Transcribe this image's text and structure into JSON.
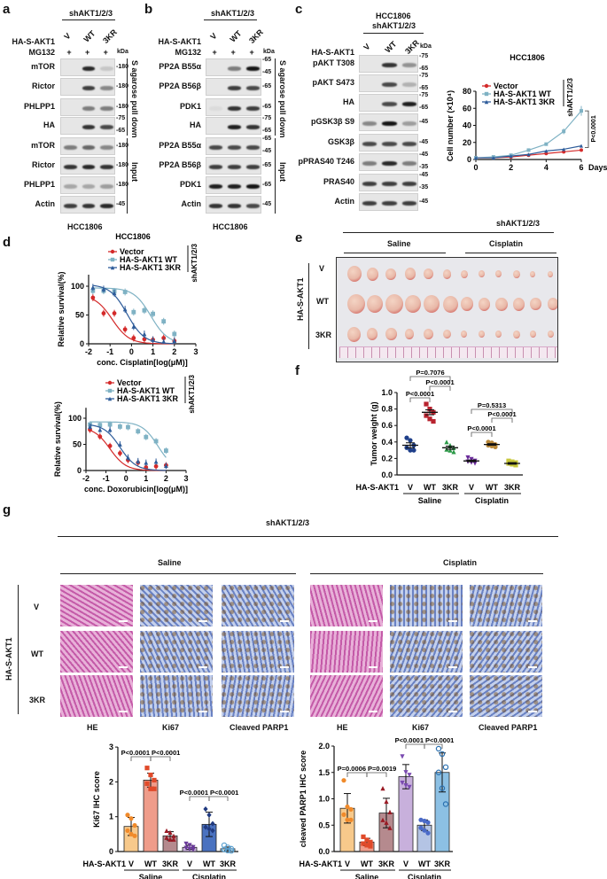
{
  "panel_labels": [
    "a",
    "b",
    "c",
    "d",
    "e",
    "f",
    "g"
  ],
  "a": {
    "header": "shAKT1/2/3",
    "row_label": "HA-S-AKT1",
    "lanes": [
      "V",
      "WT",
      "3KR"
    ],
    "mg132_label": "MG132",
    "mg132": [
      "+",
      "+",
      "+"
    ],
    "kda": "kDa",
    "rows": [
      {
        "name": "mTOR",
        "kda": [
          "180"
        ],
        "bands": [
          0,
          0.9,
          0.15
        ]
      },
      {
        "name": "Rictor",
        "kda": [
          "180"
        ],
        "bands": [
          0,
          0.8,
          0.45
        ]
      },
      {
        "name": "PHLPP1",
        "kda": [
          "180"
        ],
        "bands": [
          0,
          0.5,
          0.5
        ]
      },
      {
        "name": "HA",
        "kda": [
          "75",
          "65"
        ],
        "bands": [
          0,
          0.85,
          0.75
        ]
      },
      {
        "name": "mTOR",
        "kda": [
          "180"
        ],
        "bands": [
          0.5,
          0.6,
          0.45
        ]
      },
      {
        "name": "Rictor",
        "kda": [
          "180"
        ],
        "bands": [
          0.85,
          0.9,
          0.85
        ]
      },
      {
        "name": "PHLPP1",
        "kda": [
          "180"
        ],
        "bands": [
          0.3,
          0.3,
          0.35
        ]
      },
      {
        "name": "Actin",
        "kda": [
          "45"
        ],
        "bands": [
          0.8,
          0.85,
          0.9
        ]
      }
    ],
    "bracket_top": "S agarose pull down",
    "bracket_bottom": "Input",
    "cell_line": "HCC1806"
  },
  "b": {
    "header": "shAKT1/2/3",
    "row_label": "HA-S-AKT1",
    "lanes": [
      "V",
      "WT",
      "3KR"
    ],
    "mg132_label": "MG132",
    "mg132": [
      "+",
      "+",
      "+"
    ],
    "kda": "kDa",
    "rows": [
      {
        "name": "PP2A B55α",
        "kda": [
          "65",
          "45"
        ],
        "bands": [
          0,
          0.5,
          1
        ]
      },
      {
        "name": "PP2A B56β",
        "kda": [
          "65"
        ],
        "bands": [
          0,
          0.8,
          0.75
        ]
      },
      {
        "name": "PDK1",
        "kda": [
          "65"
        ],
        "bands": [
          0.05,
          0.85,
          0.8
        ]
      },
      {
        "name": "HA",
        "kda": [
          "75",
          "65"
        ],
        "bands": [
          0,
          0.95,
          0.85
        ]
      },
      {
        "name": "PP2A B55α",
        "kda": [
          "65",
          "45"
        ],
        "bands": [
          0.75,
          0.75,
          0.75
        ]
      },
      {
        "name": "PP2A B56β",
        "kda": [
          "65"
        ],
        "bands": [
          0.8,
          0.8,
          0.8
        ]
      },
      {
        "name": "PDK1",
        "kda": [
          "65"
        ],
        "bands": [
          0.95,
          0.95,
          1
        ]
      },
      {
        "name": "Actin",
        "kda": [
          "45"
        ],
        "bands": [
          0.85,
          0.85,
          0.75
        ]
      }
    ],
    "bracket_top": "S agarose pull down",
    "bracket_bottom": "Input",
    "cell_line": "HCC1806"
  },
  "c": {
    "header_line1": "HCC1806",
    "header_line2": "shAKT1/2/3",
    "row_label": "HA-S-AKT1",
    "lanes": [
      "V",
      "WT",
      "3KR"
    ],
    "kda": "kDa",
    "rows": [
      {
        "name": "pAKT T308",
        "kda": [
          "75",
          "65"
        ],
        "bands": [
          0,
          0.85,
          0.4
        ]
      },
      {
        "name": "pAKT S473",
        "kda": [
          "75",
          "65"
        ],
        "bands": [
          0,
          0.75,
          0.25
        ]
      },
      {
        "name": "HA",
        "kda": [
          "75",
          "65"
        ],
        "bands": [
          0,
          0.75,
          0.95
        ]
      },
      {
        "name": "pGSK3β S9",
        "kda": [
          "45"
        ],
        "bands": [
          0.45,
          1,
          0.35
        ]
      },
      {
        "name": "GSK3β",
        "kda": [
          "45"
        ],
        "bands": [
          0.75,
          0.75,
          0.75
        ]
      },
      {
        "name": "pPRAS40 T246",
        "kda": [
          "45",
          "35"
        ],
        "bands": [
          0.5,
          0.9,
          0.5
        ]
      },
      {
        "name": "PRAS40",
        "kda": [
          "45",
          "35"
        ],
        "bands": [
          0.8,
          0.8,
          0.8
        ]
      },
      {
        "name": "Actin",
        "kda": [
          "45"
        ],
        "bands": [
          0.8,
          0.8,
          0.8
        ]
      }
    ]
  },
  "chart_data": [
    {
      "id": "growth",
      "type": "line",
      "title": "HCC1806",
      "xlabel": "Days",
      "ylabel": "Cell number (×10⁴)",
      "xlim": [
        0,
        6
      ],
      "ylim": [
        0,
        80
      ],
      "xticks": [
        0,
        2,
        4,
        6
      ],
      "yticks": [
        0,
        20,
        40,
        60,
        80
      ],
      "legend_side": "shAKT1/2/3",
      "annotation": "P<0.0001",
      "x": [
        0,
        1,
        2,
        3,
        4,
        5,
        6
      ],
      "series": [
        {
          "name": "Vector",
          "color": "#d42a2a",
          "marker": "circle",
          "values": [
            2,
            2,
            3,
            5,
            7,
            9,
            11
          ]
        },
        {
          "name": "HA-S-AKT1 WT",
          "color": "#7fb2c4",
          "marker": "square",
          "values": [
            2,
            3,
            5,
            11,
            18,
            33,
            57
          ]
        },
        {
          "name": "HA-S-AKT1 3KR",
          "color": "#2e5c9a",
          "marker": "triangle",
          "values": [
            2,
            2,
            4,
            6,
            10,
            12,
            16
          ]
        }
      ]
    },
    {
      "id": "cisplatin",
      "type": "scatter",
      "title": "HCC1806",
      "xlabel": "conc. Cisplatin[log(μM)]",
      "ylabel": "Relative survival(%)",
      "xlim": [
        -2,
        3
      ],
      "ylim": [
        0,
        120
      ],
      "xticks": [
        -2,
        -1,
        0,
        1,
        2,
        3
      ],
      "yticks": [
        0,
        50,
        100
      ],
      "legend_side": "shAKT1/2/3",
      "x": [
        -1.8,
        -1.3,
        -0.8,
        -0.3,
        0.1,
        0.6,
        1.0,
        1.5,
        2.0
      ],
      "series": [
        {
          "name": "Vector",
          "color": "#d42a2a",
          "marker": "circle",
          "values": [
            80,
            53,
            53,
            25,
            10,
            8,
            7,
            10,
            5
          ],
          "ic50": -0.9
        },
        {
          "name": "HA-S-AKT1 WT",
          "color": "#7fb2c4",
          "marker": "square",
          "values": [
            92,
            92,
            91,
            90,
            55,
            58,
            52,
            39,
            17
          ],
          "ic50": 0.9
        },
        {
          "name": "HA-S-AKT1 3KR",
          "color": "#2e5c9a",
          "marker": "triangle",
          "values": [
            98,
            95,
            88,
            60,
            30,
            17,
            7,
            4,
            5
          ],
          "ic50": -0.2
        }
      ]
    },
    {
      "id": "doxorubicin",
      "type": "scatter",
      "title": "",
      "xlabel": "conc. Doxorubicin[log(μM)]",
      "ylabel": "Relative survival(%)",
      "xlim": [
        -2,
        3
      ],
      "ylim": [
        0,
        120
      ],
      "xticks": [
        -2,
        -1,
        0,
        1,
        2,
        3
      ],
      "yticks": [
        0,
        50,
        100
      ],
      "legend_side": "shAKT1/2/3",
      "x": [
        -1.8,
        -1.3,
        -0.8,
        -0.3,
        0.1,
        0.6,
        1.0,
        1.5,
        2.0
      ],
      "series": [
        {
          "name": "Vector",
          "color": "#d42a2a",
          "marker": "circle",
          "values": [
            78,
            65,
            47,
            33,
            20,
            15,
            6,
            8,
            10
          ],
          "ic50": -0.8
        },
        {
          "name": "HA-S-AKT1 WT",
          "color": "#7fb2c4",
          "marker": "square",
          "values": [
            88,
            87,
            88,
            84,
            83,
            75,
            64,
            56,
            38
          ],
          "ic50": 1.6
        },
        {
          "name": "HA-S-AKT1 3KR",
          "color": "#2e5c9a",
          "marker": "triangle",
          "values": [
            84,
            78,
            78,
            50,
            25,
            18,
            15,
            17,
            9
          ],
          "ic50": -0.3
        }
      ]
    },
    {
      "id": "tumor_weight",
      "type": "scatter",
      "ylabel": "Tumor weight (g)",
      "ylim": [
        0,
        1.0
      ],
      "yticks": [
        "0.0",
        "0.2",
        "0.4",
        "0.6",
        "0.8",
        "1.0"
      ],
      "row_label": "HA-S-AKT1",
      "categories": [
        "V",
        "WT",
        "3KR",
        "V",
        "WT",
        "3KR"
      ],
      "groups": [
        "Saline",
        "Cisplatin"
      ],
      "series": [
        {
          "color": "#1f3f8a",
          "marker": "circle",
          "mean": 0.36,
          "sem": 0.03,
          "values": [
            0.45,
            0.42,
            0.36,
            0.33,
            0.3,
            0.3
          ]
        },
        {
          "color": "#b8232f",
          "marker": "square",
          "mean": 0.76,
          "sem": 0.03,
          "values": [
            0.86,
            0.8,
            0.76,
            0.72,
            0.68,
            0.65
          ]
        },
        {
          "color": "#2c9a48",
          "marker": "triangle",
          "mean": 0.33,
          "sem": 0.02,
          "values": [
            0.4,
            0.36,
            0.33,
            0.31,
            0.3,
            0.28
          ]
        },
        {
          "color": "#6a2a9a",
          "marker": "tri-down",
          "mean": 0.17,
          "sem": 0.01,
          "values": [
            0.21,
            0.19,
            0.17,
            0.16,
            0.15,
            0.14
          ]
        },
        {
          "color": "#b8883a",
          "marker": "circle",
          "mean": 0.37,
          "sem": 0.01,
          "values": [
            0.4,
            0.39,
            0.37,
            0.36,
            0.35,
            0.34
          ]
        },
        {
          "color": "#c8c83a",
          "marker": "square",
          "mean": 0.14,
          "sem": 0.01,
          "values": [
            0.17,
            0.16,
            0.15,
            0.14,
            0.13,
            0.12
          ]
        }
      ],
      "comparisons": [
        {
          "from": 0,
          "to": 2,
          "label": "P=0.7076"
        },
        {
          "from": 1,
          "to": 2,
          "label": "P<0.0001"
        },
        {
          "from": 0,
          "to": 1,
          "label": "P<0.0001"
        },
        {
          "from": 3,
          "to": 5,
          "label": "P=0.5313"
        },
        {
          "from": 4,
          "to": 5,
          "label": "P<0.0001"
        },
        {
          "from": 3,
          "to": 4,
          "label": "P<0.0001"
        }
      ]
    },
    {
      "id": "ki67",
      "type": "bar",
      "ylabel": "Ki67 IHC score",
      "ylim": [
        0,
        3
      ],
      "yticks": [
        "0",
        "1",
        "2",
        "3"
      ],
      "row_label": "HA-S-AKT1",
      "categories": [
        "V",
        "WT",
        "3KR",
        "V",
        "WT",
        "3KR"
      ],
      "groups": [
        "Saline",
        "Cisplatin"
      ],
      "series": [
        {
          "fill": "#f7c98b",
          "color": "#f08a2a",
          "marker": "circle",
          "mean": 0.72,
          "sd": 0.26,
          "values": [
            1.05,
            0.95,
            0.75,
            0.6,
            0.5,
            0.45
          ]
        },
        {
          "fill": "#ef9c8a",
          "color": "#e04a2a",
          "marker": "square",
          "mean": 2.05,
          "sd": 0.2,
          "values": [
            2.4,
            2.2,
            2.05,
            1.95,
            1.8,
            1.8
          ]
        },
        {
          "fill": "#b58a8e",
          "color": "#9a1a24",
          "marker": "triangle",
          "mean": 0.45,
          "sd": 0.12,
          "values": [
            0.6,
            0.55,
            0.45,
            0.4,
            0.35,
            0.35
          ]
        },
        {
          "fill": "#c8b0dc",
          "color": "#6a3a9a",
          "marker": "tri-down",
          "mean": 0.12,
          "sd": 0.06,
          "values": [
            0.22,
            0.18,
            0.12,
            0.1,
            0.07,
            0.05
          ]
        },
        {
          "fill": "#4a72c0",
          "color": "#203a80",
          "marker": "diamond",
          "mean": 0.78,
          "sd": 0.35,
          "values": [
            1.22,
            1.05,
            0.8,
            0.7,
            0.65,
            0.6
          ]
        },
        {
          "fill": "#bde0f2",
          "color": "#5aa0d0",
          "marker": "circle-open",
          "mean": 0.08,
          "sd": 0.05,
          "values": [
            0.18,
            0.12,
            0.08,
            0.06,
            0.03,
            0.02
          ]
        }
      ],
      "comparisons": [
        {
          "from": 0,
          "to": 1,
          "label": "P<0.0001"
        },
        {
          "from": 1,
          "to": 2,
          "label": "P<0.0001"
        },
        {
          "from": 3,
          "to": 4,
          "label": "P<0.0001"
        },
        {
          "from": 4,
          "to": 5,
          "label": "P<0.0001"
        }
      ]
    },
    {
      "id": "cleaved_parp1",
      "type": "bar",
      "ylabel": "cleaved PARP1 IHC score",
      "ylim": [
        0,
        2.0
      ],
      "yticks": [
        "0.0",
        "0.5",
        "1.0",
        "1.5",
        "2.0"
      ],
      "row_label": "HA-S-AKT1",
      "categories": [
        "V",
        "WT",
        "3KR",
        "V",
        "WT",
        "3KR"
      ],
      "groups": [
        "Saline",
        "Cisplatin"
      ],
      "series": [
        {
          "fill": "#f7c98b",
          "color": "#f08a2a",
          "marker": "circle",
          "mean": 0.82,
          "sd": 0.28,
          "values": [
            1.35,
            0.85,
            0.8,
            0.7,
            0.6,
            0.6
          ]
        },
        {
          "fill": "#ef9c8a",
          "color": "#e04a2a",
          "marker": "square",
          "mean": 0.18,
          "sd": 0.07,
          "values": [
            0.28,
            0.22,
            0.18,
            0.15,
            0.12,
            0.1
          ]
        },
        {
          "fill": "#b58a8e",
          "color": "#9a1a24",
          "marker": "triangle",
          "mean": 0.73,
          "sd": 0.28,
          "values": [
            1.2,
            0.95,
            0.75,
            0.6,
            0.55,
            0.45
          ]
        },
        {
          "fill": "#c8b0dc",
          "color": "#7a4ab0",
          "marker": "tri-down",
          "mean": 1.42,
          "sd": 0.23,
          "values": [
            1.8,
            1.5,
            1.45,
            1.3,
            1.25,
            1.22
          ]
        },
        {
          "fill": "#b4c4e4",
          "color": "#4a6ac8",
          "marker": "circle",
          "mean": 0.5,
          "sd": 0.1,
          "values": [
            0.6,
            0.58,
            0.55,
            0.45,
            0.4,
            0.35
          ]
        },
        {
          "fill": "#8cc0e4",
          "color": "#2a70b0",
          "marker": "circle-open",
          "mean": 1.5,
          "sd": 0.37,
          "values": [
            1.95,
            1.85,
            1.6,
            1.5,
            1.2,
            0.9
          ]
        }
      ],
      "comparisons": [
        {
          "from": 0,
          "to": 1,
          "label": "P=0.0006"
        },
        {
          "from": 1,
          "to": 2,
          "label": "P=0.0019"
        },
        {
          "from": 3,
          "to": 4,
          "label": "P<0.0001"
        },
        {
          "from": 4,
          "to": 5,
          "label": "P<0.0001"
        }
      ]
    }
  ],
  "e": {
    "header": "shAKT1/2/3",
    "groups": [
      "Saline",
      "Cisplatin"
    ],
    "row_label": "HA-S-AKT1",
    "rows": [
      "V",
      "WT",
      "3KR"
    ]
  },
  "g": {
    "header": "shAKT1/2/3",
    "groups": [
      "Saline",
      "Cisplatin"
    ],
    "row_label": "HA-S-AKT1",
    "rows": [
      "V",
      "WT",
      "3KR"
    ],
    "stains": [
      "HE",
      "Ki67",
      "Cleaved PARP1"
    ]
  },
  "colors": {
    "he_tissue": "#c45aa8",
    "ihc_tissue": "#6a82c4",
    "tumor": "#e8b8a8"
  }
}
